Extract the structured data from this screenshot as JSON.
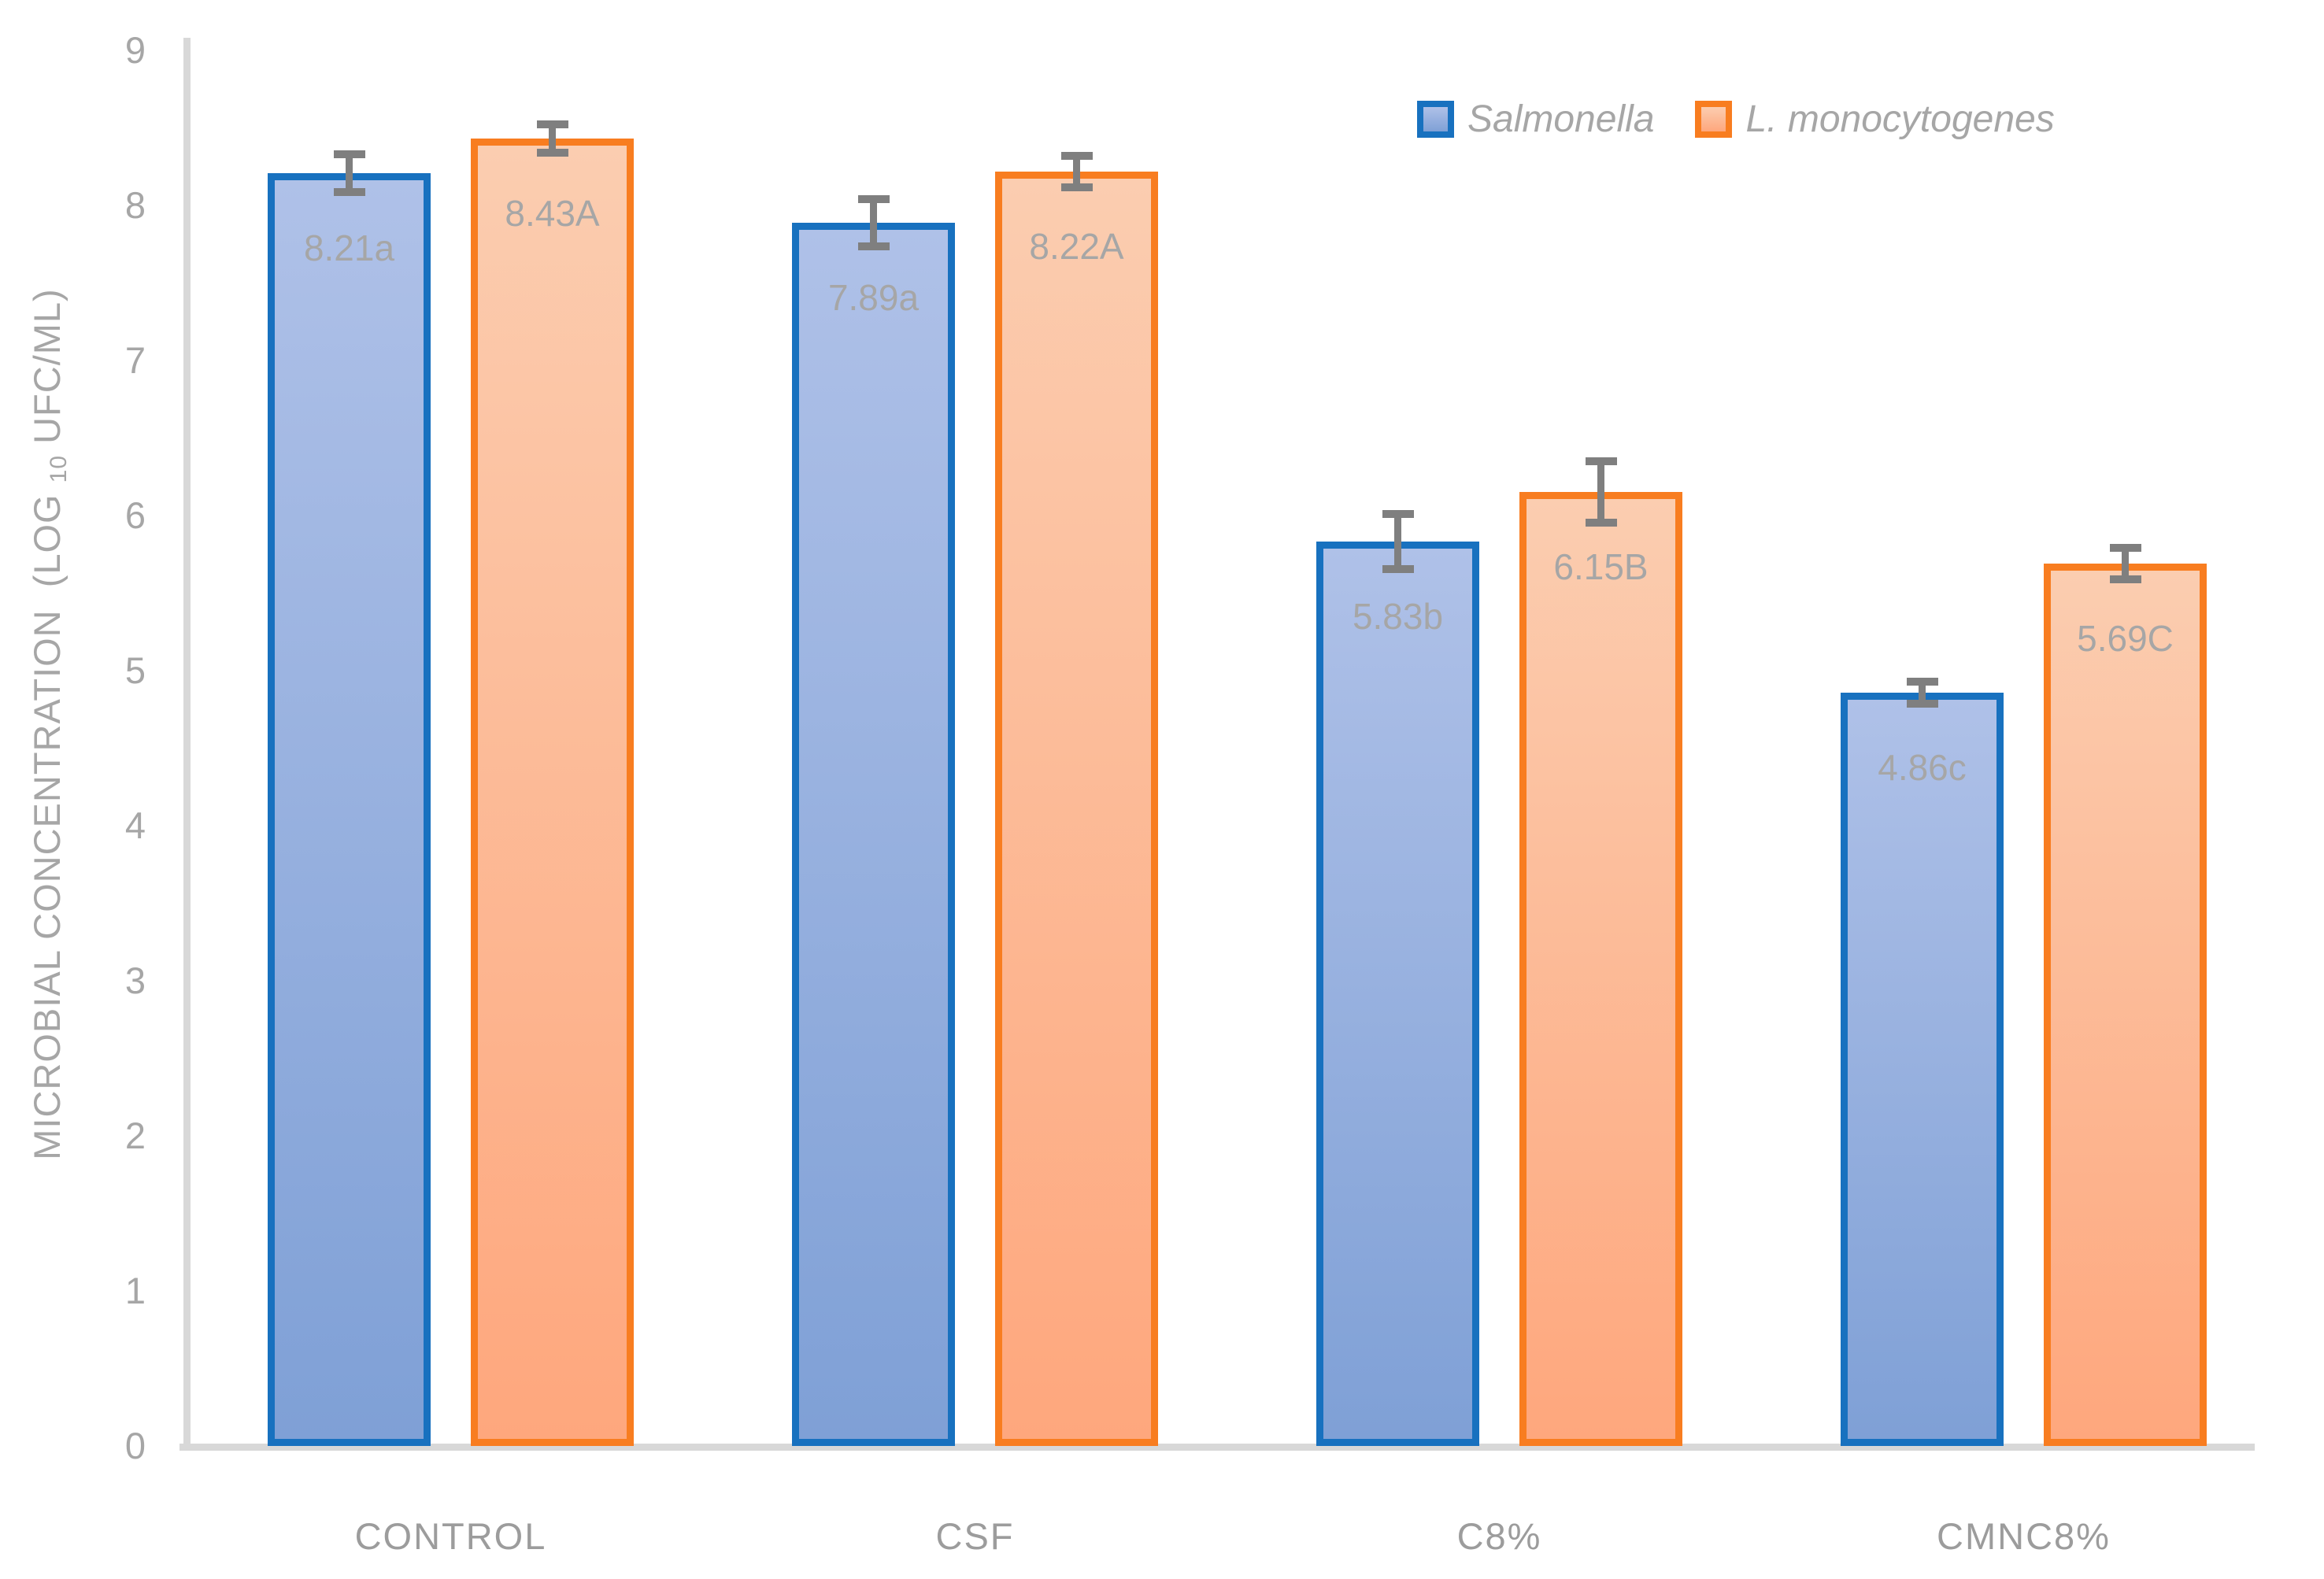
{
  "chart_data": {
    "type": "bar",
    "title": "",
    "categories": [
      "CONTROL",
      "CSF",
      "C8%",
      "CMNC8%"
    ],
    "series": [
      {
        "name": "Salmonella",
        "values": [
          8.21,
          7.89,
          5.83,
          4.86
        ],
        "data_labels": [
          "8.21a",
          "7.89a",
          "5.83b",
          "4.86c"
        ],
        "errors": [
          0.12,
          0.15,
          0.18,
          0.07
        ],
        "border_color": "#1871BF",
        "fill_top": "#AFC1E8",
        "fill_bottom": "#7FA0D6"
      },
      {
        "name": "L. monocytogenes",
        "values": [
          8.43,
          8.22,
          6.15,
          5.69
        ],
        "data_labels": [
          "8.43A",
          "8.22A",
          "6.15B",
          "5.69C"
        ],
        "errors": [
          0.09,
          0.1,
          0.2,
          0.1
        ],
        "border_color": "#F87D20",
        "fill_top": "#FBCDB0",
        "fill_bottom": "#FEA77D"
      }
    ],
    "ylabel_parts": {
      "pre": "MICROBIAL CONCENTRATION  (LOG ",
      "sub": "10",
      "post": " UFC/ML)"
    },
    "xlabel": "",
    "ylim": [
      0,
      9
    ],
    "yticks": [
      0,
      1,
      2,
      3,
      4,
      5,
      6,
      7,
      8,
      9
    ],
    "grid": false,
    "legend_position": "top-right",
    "error_bars": true
  },
  "colors": {
    "axis_line": "#D8D8D8",
    "tick_text": "#A6A6A6",
    "x_label_text": "#9C9C9C",
    "data_label_text": "#A6A6A6",
    "legend_text": "#A6A6A6",
    "error_bar": "#7F7F7F",
    "background": "#FFFFFF"
  }
}
